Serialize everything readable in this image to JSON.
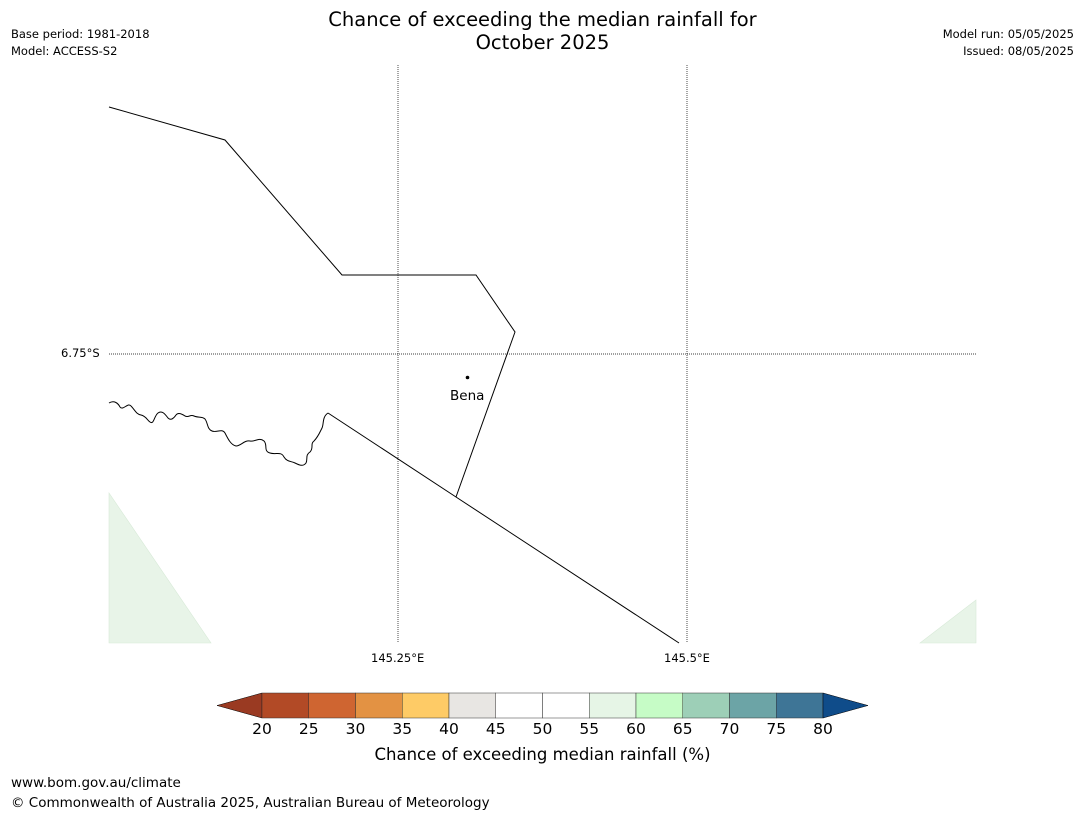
{
  "title": {
    "line1": "Chance of exceeding the median rainfall for",
    "line2": "October 2025"
  },
  "meta_left": {
    "base_period": "Base period: 1981-2018",
    "model": "Model: ACCESS-S2"
  },
  "meta_right": {
    "model_run": "Model run: 05/05/2025",
    "issued": "Issued: 08/05/2025"
  },
  "map": {
    "lat_labels": [
      "6.75°S"
    ],
    "lon_labels": [
      "145.25°E",
      "145.5°E"
    ],
    "place": {
      "name": "Bena"
    },
    "border_color": "#000000",
    "shaded_region_color": "#e8f4e8",
    "gridline_style": "dotted"
  },
  "colorbar": {
    "label": "Chance of exceeding median rainfall (%)",
    "ticks": [
      "20",
      "25",
      "30",
      "35",
      "40",
      "45",
      "50",
      "55",
      "60",
      "65",
      "70",
      "75",
      "80"
    ],
    "low_extend_color": "#9a3a22",
    "high_extend_color": "#0f4c8a",
    "bins": [
      {
        "range": "20-25",
        "color": "#b24a26"
      },
      {
        "range": "25-30",
        "color": "#cf6531"
      },
      {
        "range": "30-35",
        "color": "#e39243"
      },
      {
        "range": "35-40",
        "color": "#fecb66"
      },
      {
        "range": "40-45",
        "color": "#e8e6e3"
      },
      {
        "range": "45-50",
        "color": "#ffffff"
      },
      {
        "range": "50-55",
        "color": "#ffffff"
      },
      {
        "range": "55-60",
        "color": "#e6f5e6"
      },
      {
        "range": "60-65",
        "color": "#c6fcc6"
      },
      {
        "range": "65-70",
        "color": "#9dcfb7"
      },
      {
        "range": "70-75",
        "color": "#6ca4a6"
      },
      {
        "range": "75-80",
        "color": "#3e7596"
      }
    ]
  },
  "footer": {
    "url": "www.bom.gov.au/climate",
    "copyright": "© Commonwealth of Australia 2025, Australian Bureau of Meteorology"
  }
}
